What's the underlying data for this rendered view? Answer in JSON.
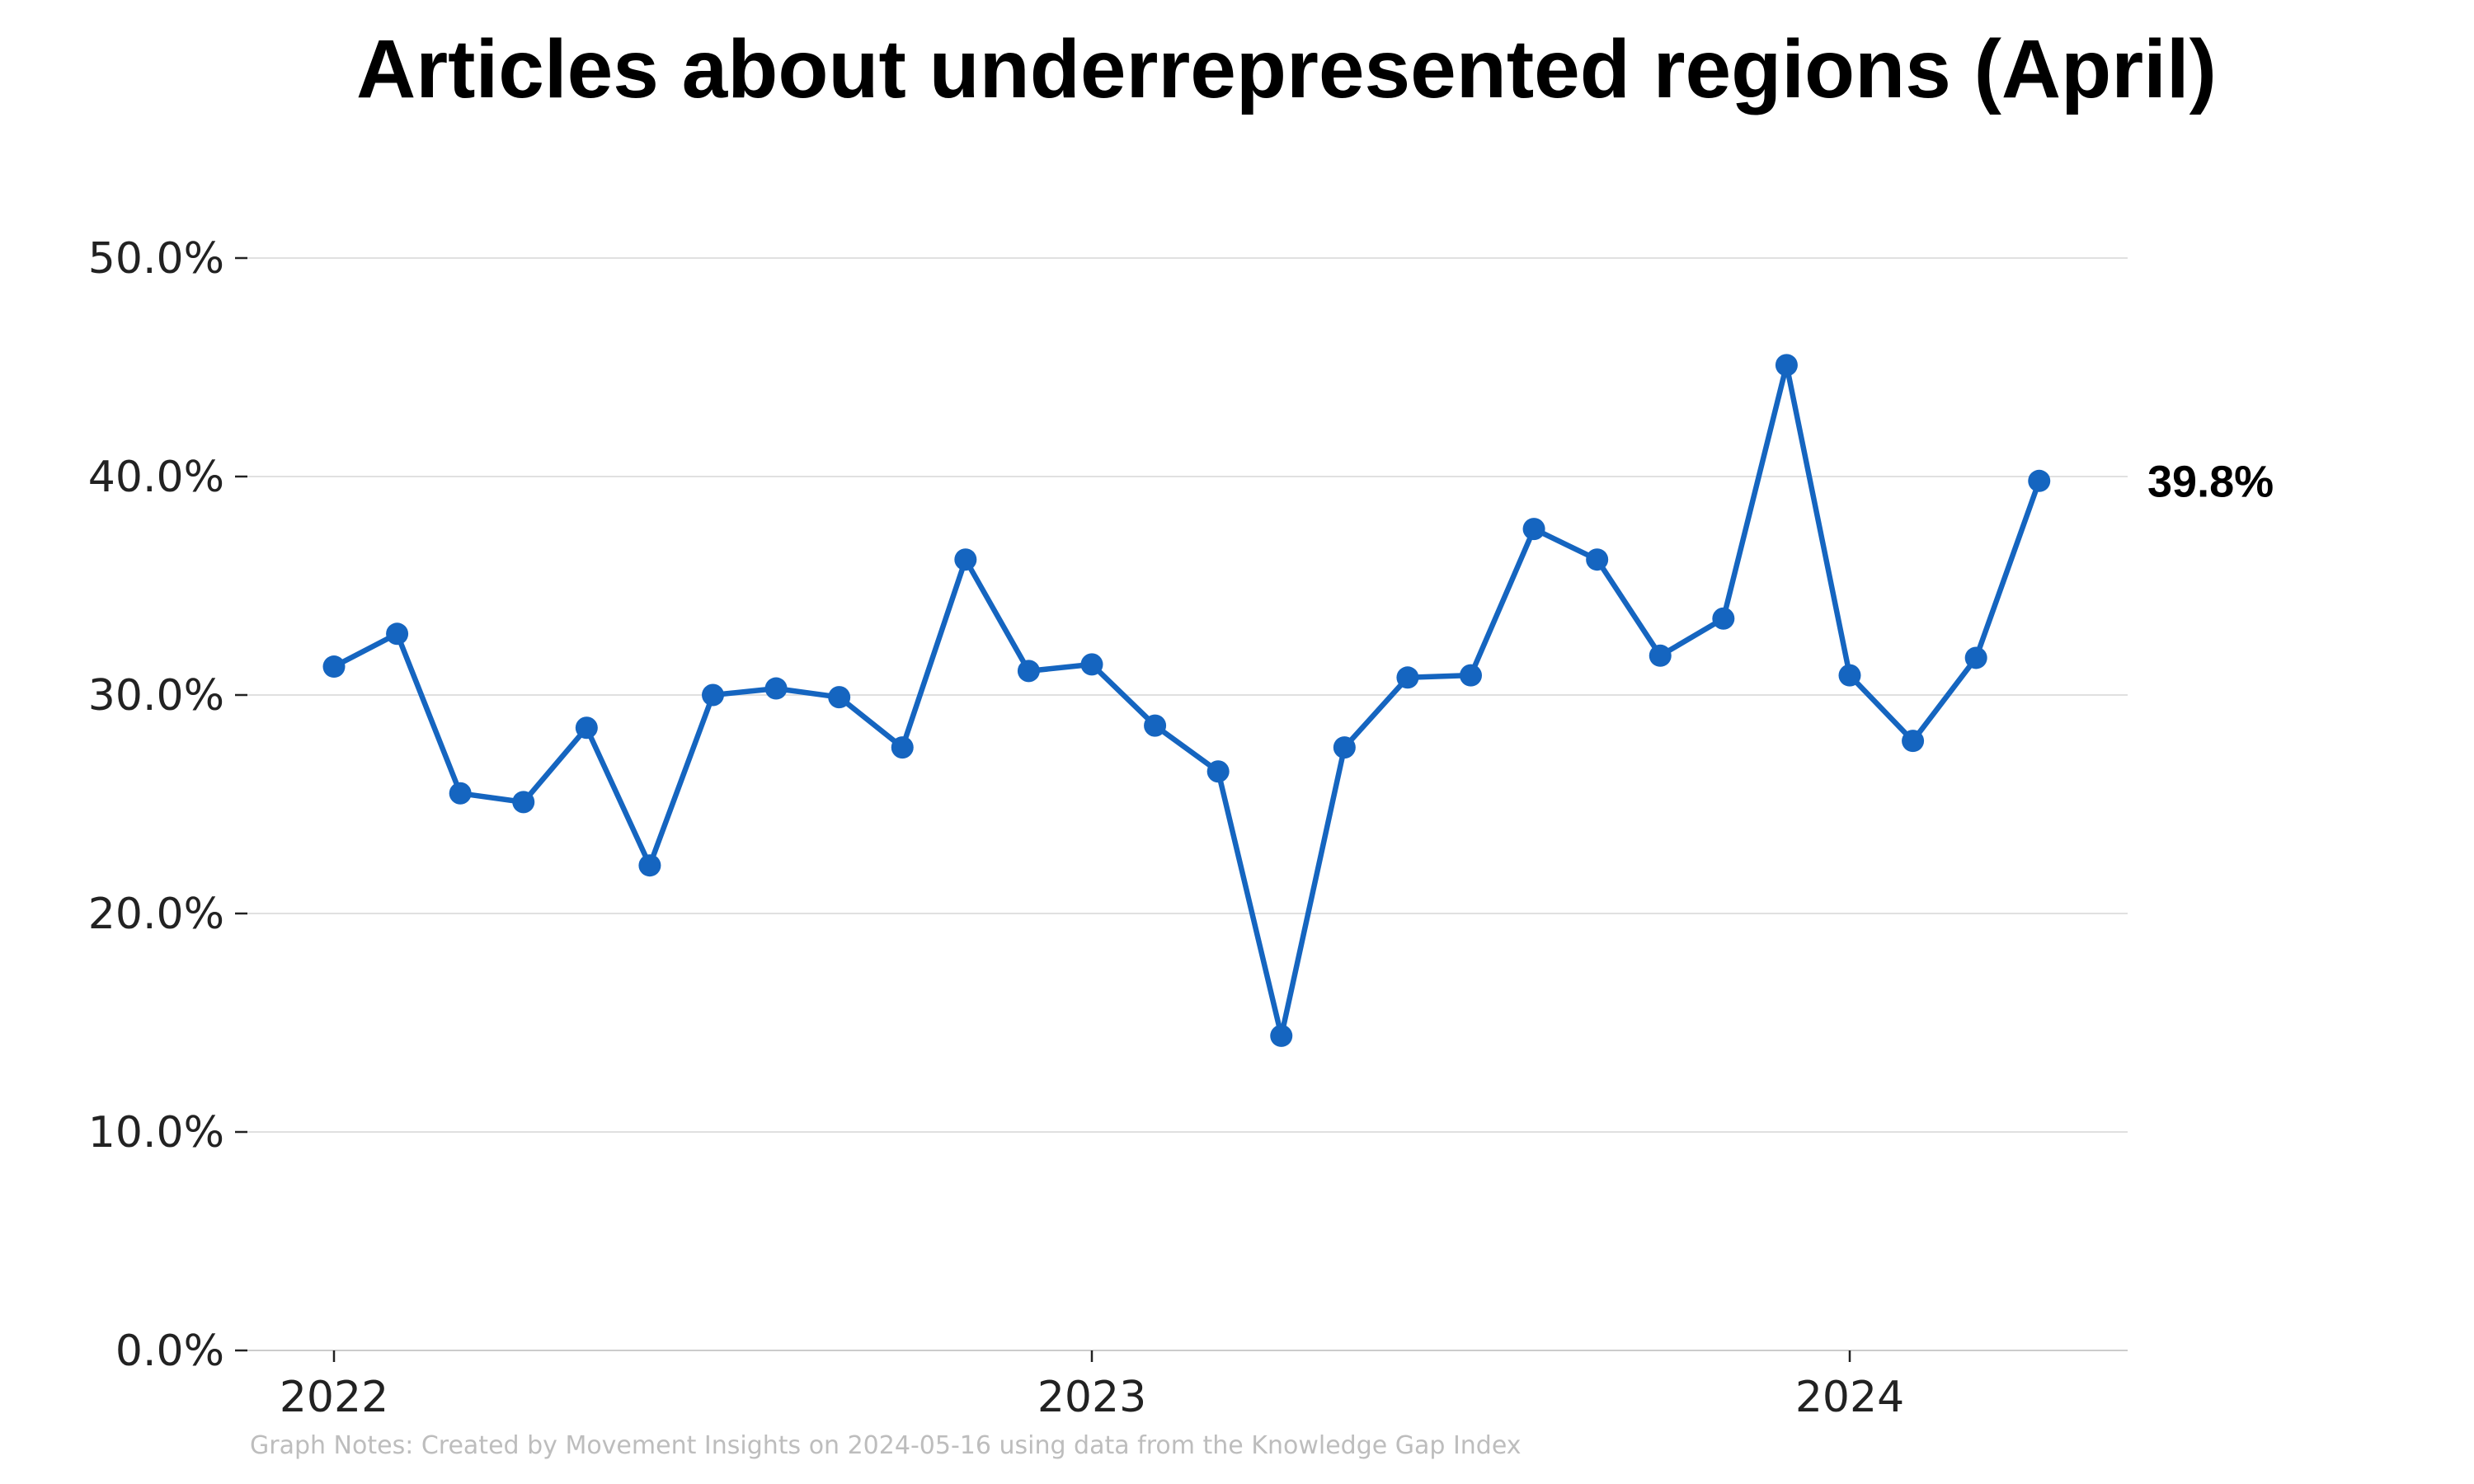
{
  "chart_data": {
    "type": "line",
    "title": "Articles about underrepresented regions (April)",
    "xlabel": "",
    "ylabel": "",
    "ylim": [
      0,
      50
    ],
    "y_ticks": [
      0,
      10,
      20,
      30,
      40,
      50
    ],
    "y_tick_labels": [
      "0.0%",
      "10.0%",
      "20.0%",
      "30.0%",
      "40.0%",
      "50.0%"
    ],
    "x_ticks": [
      "2022",
      "2023",
      "2024"
    ],
    "grid": true,
    "legend": "none",
    "color": "#1565c0",
    "end_label": "39.8%",
    "series": [
      {
        "x": [
          "2022-01",
          "2022-02",
          "2022-03",
          "2022-04",
          "2022-05",
          "2022-06",
          "2022-07",
          "2022-08",
          "2022-09",
          "2022-10",
          "2022-11",
          "2022-12",
          "2023-01",
          "2023-02",
          "2023-03",
          "2023-04",
          "2023-05",
          "2023-06",
          "2023-07",
          "2023-08",
          "2023-09",
          "2023-10",
          "2023-11",
          "2023-12",
          "2024-01",
          "2024-02",
          "2024-03",
          "2024-04"
        ],
        "values": [
          31.3,
          32.8,
          25.5,
          25.1,
          28.5,
          22.2,
          30.0,
          30.3,
          29.9,
          27.6,
          36.2,
          31.1,
          31.4,
          28.6,
          26.5,
          14.4,
          27.6,
          30.8,
          30.9,
          37.6,
          36.2,
          31.8,
          33.5,
          45.1,
          30.9,
          27.9,
          31.7,
          39.8
        ]
      }
    ]
  },
  "notes": "Graph Notes: Created by Movement Insights  on 2024-05-16 using data from the Knowledge Gap Index"
}
